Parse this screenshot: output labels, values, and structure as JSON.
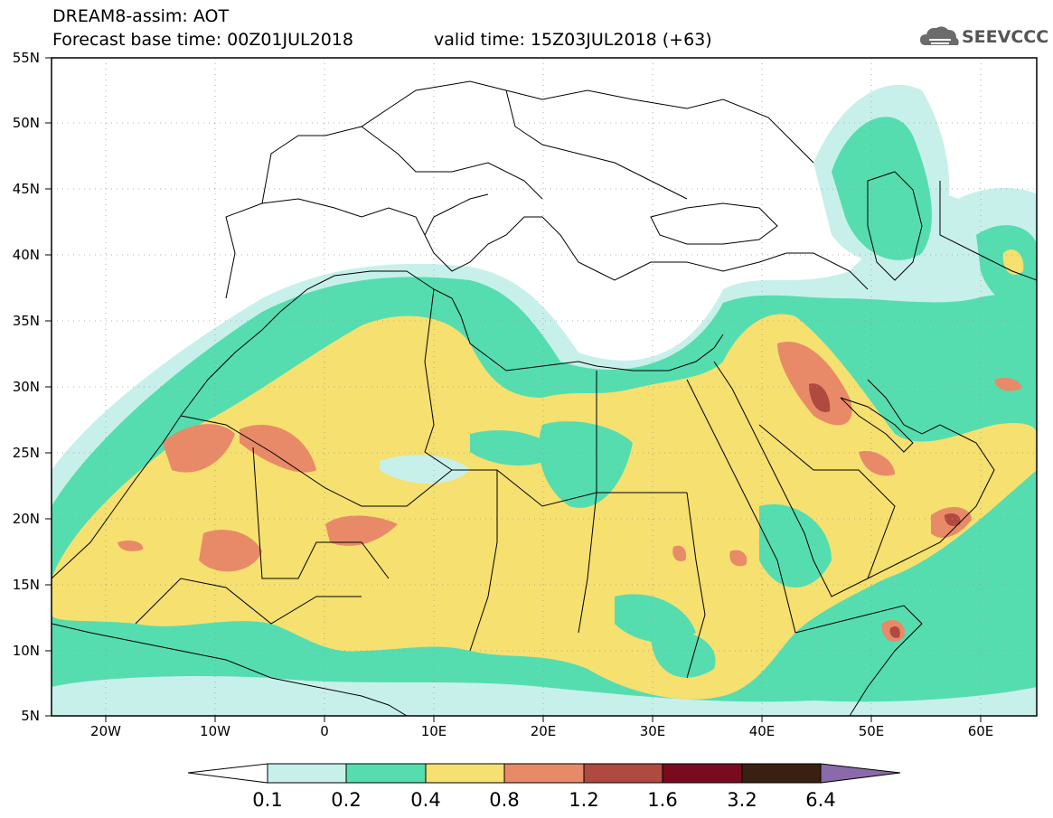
{
  "header": {
    "model_title": "DREAM8-assim: AOT",
    "base_time": "Forecast base time: 00Z01JUL2018",
    "valid_time": "valid time: 15Z03JUL2018 (+63)",
    "logo_text": "SEEVCCC"
  },
  "map": {
    "lat_labels": [
      "55N",
      "50N",
      "45N",
      "40N",
      "35N",
      "30N",
      "25N",
      "20N",
      "15N",
      "10N",
      "5N"
    ],
    "lon_labels": [
      "20W",
      "10W",
      "0",
      "10E",
      "20E",
      "30E",
      "40E",
      "50E",
      "60E"
    ],
    "lat_range": [
      5,
      55
    ],
    "lon_range": [
      -25,
      65
    ]
  },
  "colorbar": {
    "labels": [
      "0.1",
      "0.2",
      "0.4",
      "0.8",
      "1.2",
      "1.6",
      "3.2",
      "6.4"
    ],
    "colors": [
      "#ffffff",
      "#c8f0ea",
      "#55ddb0",
      "#f5e070",
      "#e88a68",
      "#b04a40",
      "#7a0a1e",
      "#3a2010",
      "#8a6aa8"
    ]
  }
}
